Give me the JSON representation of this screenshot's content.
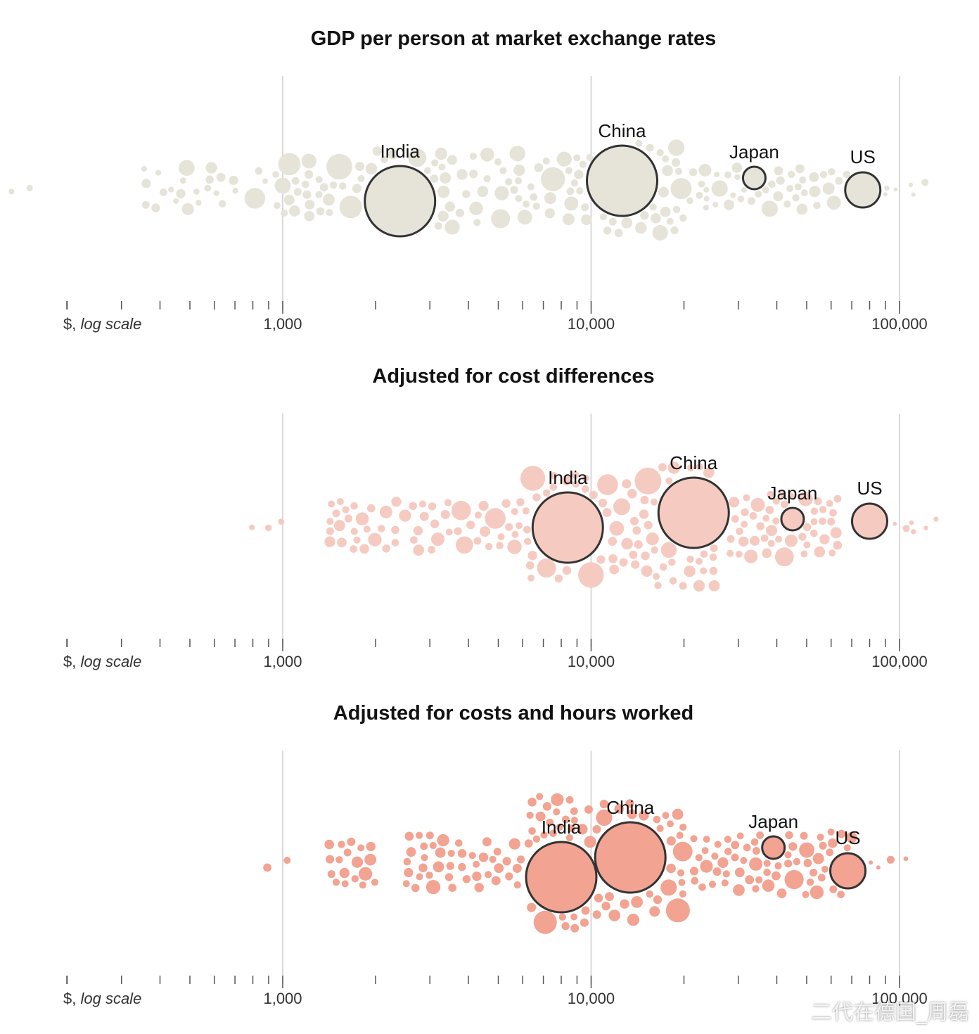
{
  "axis": {
    "unit_prefix": "$, ",
    "unit_italic": "log scale",
    "domain": [
      100,
      130000
    ],
    "scale": "log"
  },
  "colors": {
    "panel1": "#e6e3d8",
    "panel2": "#f5cbc1",
    "panel3": "#f2a391",
    "outline": "#333333",
    "gridline": "#d9d9d9",
    "tick": "#555555"
  },
  "watermark": "二代在德国_周磊",
  "chart_data": [
    {
      "type": "scatter",
      "title": "GDP per person at market exchange rates",
      "x_ticks": [
        "1,000",
        "10,000",
        "100,000"
      ],
      "x_tick_values": [
        1000,
        10000,
        100000
      ],
      "highlighted": [
        {
          "name": "India",
          "x": 2400
        },
        {
          "name": "China",
          "x": 12600
        },
        {
          "name": "Japan",
          "x": 33800
        },
        {
          "name": "US",
          "x": 76000
        }
      ]
    },
    {
      "type": "scatter",
      "title": "Adjusted for cost differences",
      "x_ticks": [
        "1,000",
        "10,000",
        "100,000"
      ],
      "x_tick_values": [
        1000,
        10000,
        100000
      ],
      "highlighted": [
        {
          "name": "India",
          "x": 8400
        },
        {
          "name": "China",
          "x": 21500
        },
        {
          "name": "Japan",
          "x": 45000
        },
        {
          "name": "US",
          "x": 80000
        }
      ]
    },
    {
      "type": "scatter",
      "title": "Adjusted for costs and hours worked",
      "x_ticks": [
        "1,000",
        "10,000",
        "100,000"
      ],
      "x_tick_values": [
        1000,
        10000,
        100000
      ],
      "highlighted": [
        {
          "name": "India",
          "x": 8000
        },
        {
          "name": "China",
          "x": 13400
        },
        {
          "name": "Japan",
          "x": 39000
        },
        {
          "name": "US",
          "x": 68000
        }
      ]
    }
  ]
}
